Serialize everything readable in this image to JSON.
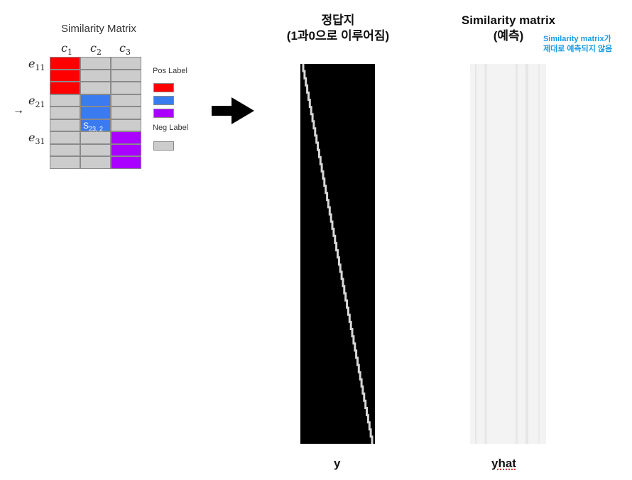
{
  "similarity_matrix": {
    "title": "Similarity Matrix",
    "columns": [
      "c",
      "c",
      "c"
    ],
    "column_subscripts": [
      "1",
      "2",
      "3"
    ],
    "rows": [
      {
        "label": "e",
        "sub": "11"
      },
      {
        "label": "e",
        "sub": "21"
      },
      {
        "label": "e",
        "sub": "31"
      }
    ],
    "highlight_cell": {
      "text": "S",
      "sub": "23, 2"
    },
    "pointer": "→",
    "legend": {
      "pos": "Pos Label",
      "neg": "Neg Label"
    },
    "colors": {
      "pos1": "#ff0000",
      "pos2": "#3b7bf0",
      "pos3": "#aa00ff",
      "neg": "#cccccc"
    }
  },
  "arrow": "big-right-arrow",
  "ground_truth": {
    "title_line1": "정답지",
    "title_line2": "(1과0으로 이루어짐)",
    "label": "y"
  },
  "prediction": {
    "title_line1": "Similarity matrix",
    "title_line2": "(예측)",
    "note_line1": "Similarity matrix가",
    "note_line2": "제대로 예측되지 않음",
    "label": "yhat"
  }
}
